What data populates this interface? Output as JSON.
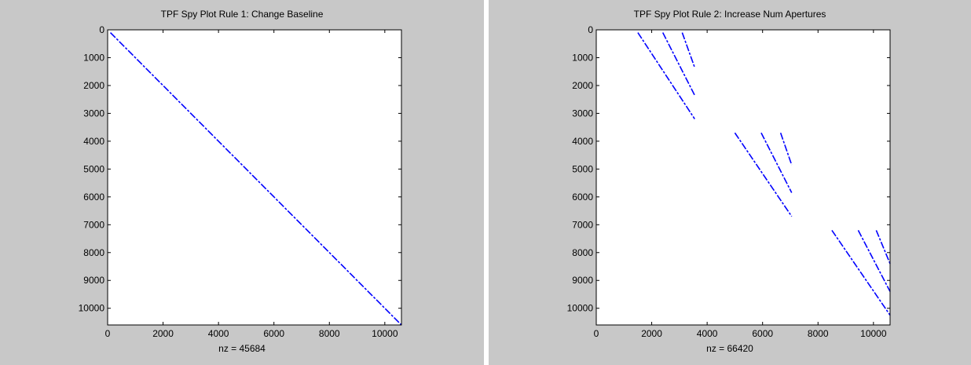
{
  "chart_data": [
    {
      "type": "spy",
      "title": "TPF Spy Plot Rule 1: Change Baseline",
      "xlabel": "nz = 45684",
      "xlim": [
        0,
        10600
      ],
      "ylim": [
        0,
        10600
      ],
      "y_reversed": true,
      "xticks": [
        0,
        2000,
        4000,
        6000,
        8000,
        10000
      ],
      "yticks": [
        0,
        1000,
        2000,
        3000,
        4000,
        5000,
        6000,
        7000,
        8000,
        9000,
        10000
      ],
      "marker_color": "#0000ff",
      "background": "#ffffff",
      "segments": [
        {
          "x1": 100,
          "y1": 100,
          "x2": 10600,
          "y2": 10600
        }
      ]
    },
    {
      "type": "spy",
      "title": "TPF Spy Plot Rule 2: Increase Num Apertures",
      "xlabel": "nz = 66420",
      "xlim": [
        0,
        10600
      ],
      "ylim": [
        0,
        10600
      ],
      "y_reversed": true,
      "xticks": [
        0,
        2000,
        4000,
        6000,
        8000,
        10000
      ],
      "yticks": [
        0,
        1000,
        2000,
        3000,
        4000,
        5000,
        6000,
        7000,
        8000,
        9000,
        10000
      ],
      "marker_color": "#0000ff",
      "background": "#ffffff",
      "segments": [
        {
          "x1": 1500,
          "y1": 100,
          "x2": 3550,
          "y2": 3200
        },
        {
          "x1": 2400,
          "y1": 100,
          "x2": 3550,
          "y2": 2350
        },
        {
          "x1": 3100,
          "y1": 100,
          "x2": 3550,
          "y2": 1350
        },
        {
          "x1": 5000,
          "y1": 3700,
          "x2": 7050,
          "y2": 6700
        },
        {
          "x1": 5950,
          "y1": 3700,
          "x2": 7050,
          "y2": 5850
        },
        {
          "x1": 6650,
          "y1": 3700,
          "x2": 7050,
          "y2": 4850
        },
        {
          "x1": 8500,
          "y1": 7200,
          "x2": 10600,
          "y2": 10250
        },
        {
          "x1": 9450,
          "y1": 7200,
          "x2": 10600,
          "y2": 9400
        },
        {
          "x1": 10100,
          "y1": 7200,
          "x2": 10600,
          "y2": 8400
        }
      ]
    }
  ]
}
